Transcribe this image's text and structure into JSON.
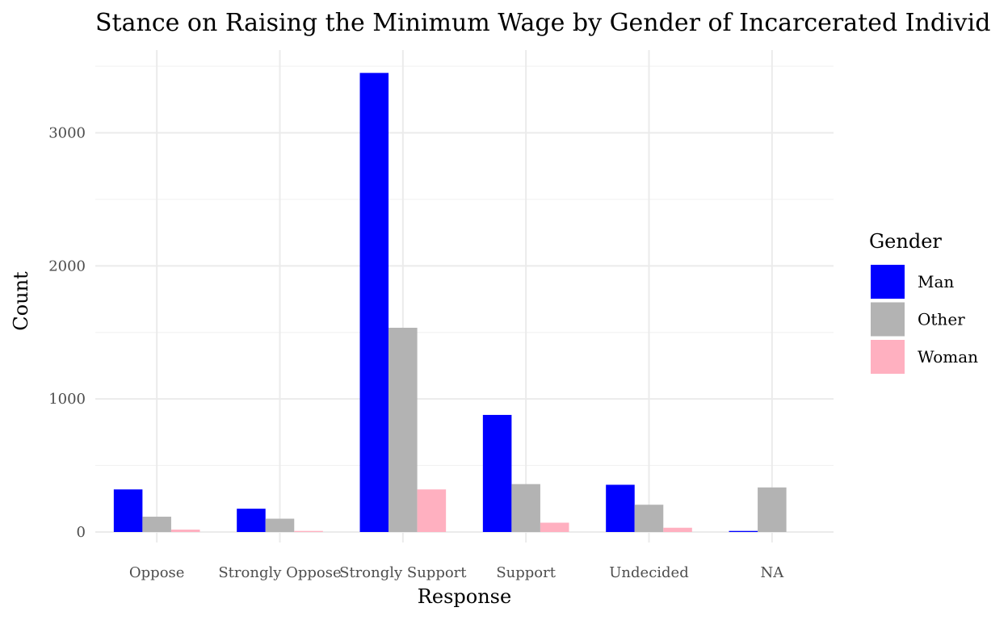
{
  "chart_data": {
    "type": "bar",
    "title": "Stance on Raising the Minimum Wage by Gender of Incarcerated Individ",
    "xlabel": "Response",
    "ylabel": "Count",
    "categories": [
      "Oppose",
      "Strongly Oppose",
      "Strongly Support",
      "Support",
      "Undecided",
      "NA"
    ],
    "series": [
      {
        "name": "Man",
        "color": "#0000ff",
        "values": [
          320,
          175,
          3450,
          880,
          355,
          8
        ]
      },
      {
        "name": "Other",
        "color": "#b3b3b3",
        "values": [
          115,
          100,
          1535,
          360,
          205,
          335
        ]
      },
      {
        "name": "Woman",
        "color": "#ffb0c0",
        "values": [
          18,
          8,
          320,
          70,
          32,
          0
        ]
      }
    ],
    "ylim": [
      0,
      3500
    ],
    "yticks": [
      0,
      1000,
      2000,
      3000
    ],
    "ytick_labels": [
      "0",
      "1000",
      "2000",
      "3000"
    ],
    "grid": true,
    "legend": {
      "title": "Gender",
      "position": "right"
    }
  }
}
